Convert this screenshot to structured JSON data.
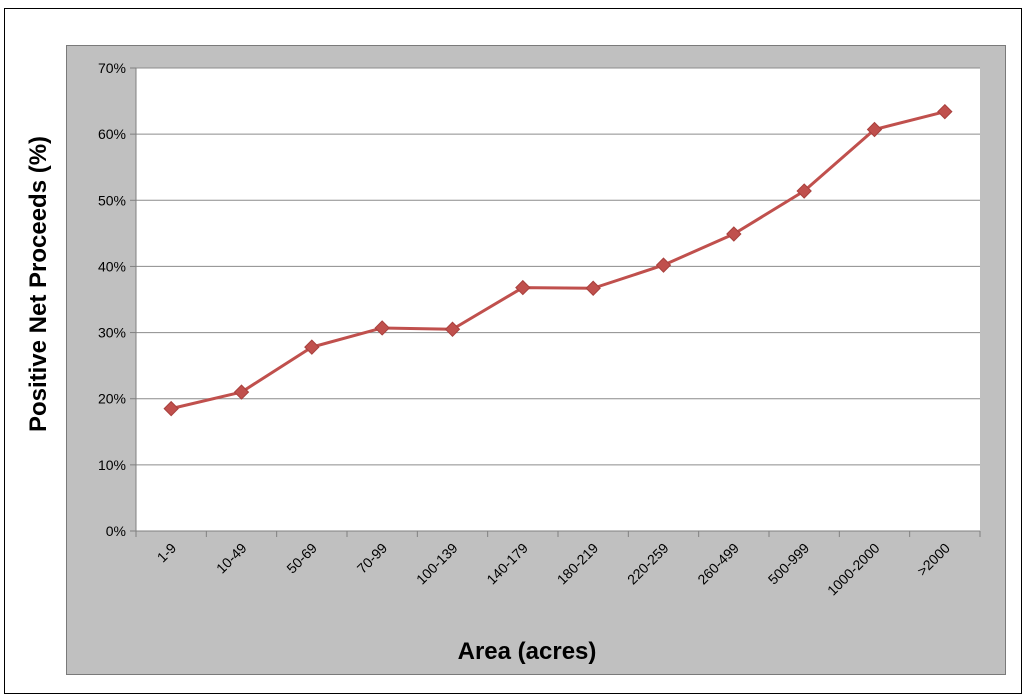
{
  "chart_data": {
    "type": "line",
    "title": "",
    "xlabel": "Area (acres)",
    "ylabel": "Positive Net Proceeds (%)",
    "categories": [
      "1-9",
      "10-49",
      "50-69",
      "70-99",
      "100-139",
      "140-179",
      "180-219",
      "220-259",
      "260-499",
      "500-999",
      "1000-2000",
      ">2000"
    ],
    "series": [
      {
        "values": [
          18.5,
          21.0,
          27.8,
          30.7,
          30.5,
          36.8,
          36.7,
          40.2,
          44.9,
          51.4,
          60.7,
          63.4
        ]
      }
    ],
    "ylim": [
      0,
      70
    ],
    "yticks": [
      0,
      10,
      20,
      30,
      40,
      50,
      60,
      70
    ],
    "ytick_labels": [
      "0%",
      "10%",
      "20%",
      "30%",
      "40%",
      "50%",
      "60%",
      "70%"
    ],
    "grid": "horizontal",
    "legend": "none",
    "colors": {
      "line": "#c0504d",
      "plot_background": "#ffffff",
      "chart_background": "#c0c0c0",
      "gridline": "#8c8c8c"
    }
  }
}
